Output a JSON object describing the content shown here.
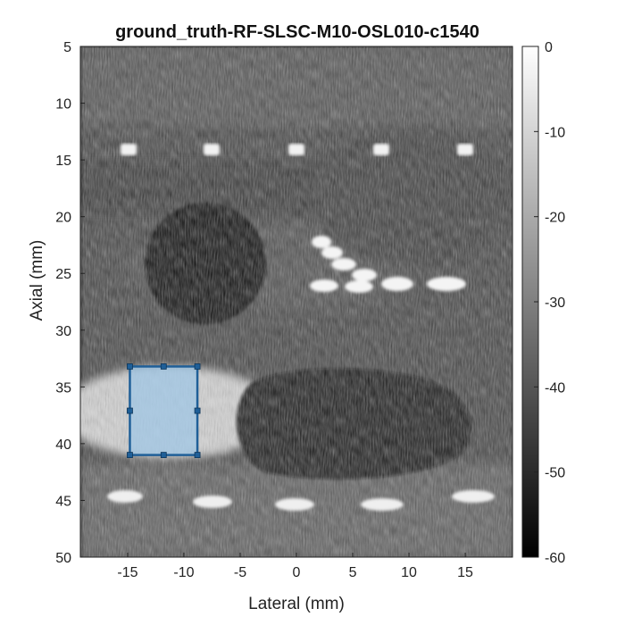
{
  "title": "ground_truth-RF-SLSC-M10-OSL010-c1540",
  "xlabel": "Lateral (mm)",
  "ylabel": "Axial (mm)",
  "x_ticks": [
    "-15",
    "-10",
    "-5",
    "0",
    "5",
    "10",
    "15"
  ],
  "y_ticks": [
    "5",
    "10",
    "15",
    "20",
    "25",
    "30",
    "35",
    "40",
    "45",
    "50"
  ],
  "colorbar_ticks": [
    "0",
    "-10",
    "-20",
    "-30",
    "-40",
    "-50",
    "-60"
  ],
  "image": {
    "x_range_mm": [
      -19.2,
      19.2
    ],
    "y_range_mm": [
      5,
      50
    ],
    "db_range": [
      -60,
      0
    ],
    "colormap": "gray"
  },
  "roi": {
    "lateral_mm": [
      -14.8,
      -8.8
    ],
    "axial_mm": [
      33.2,
      41.0
    ],
    "color": "#1f5f98"
  }
}
